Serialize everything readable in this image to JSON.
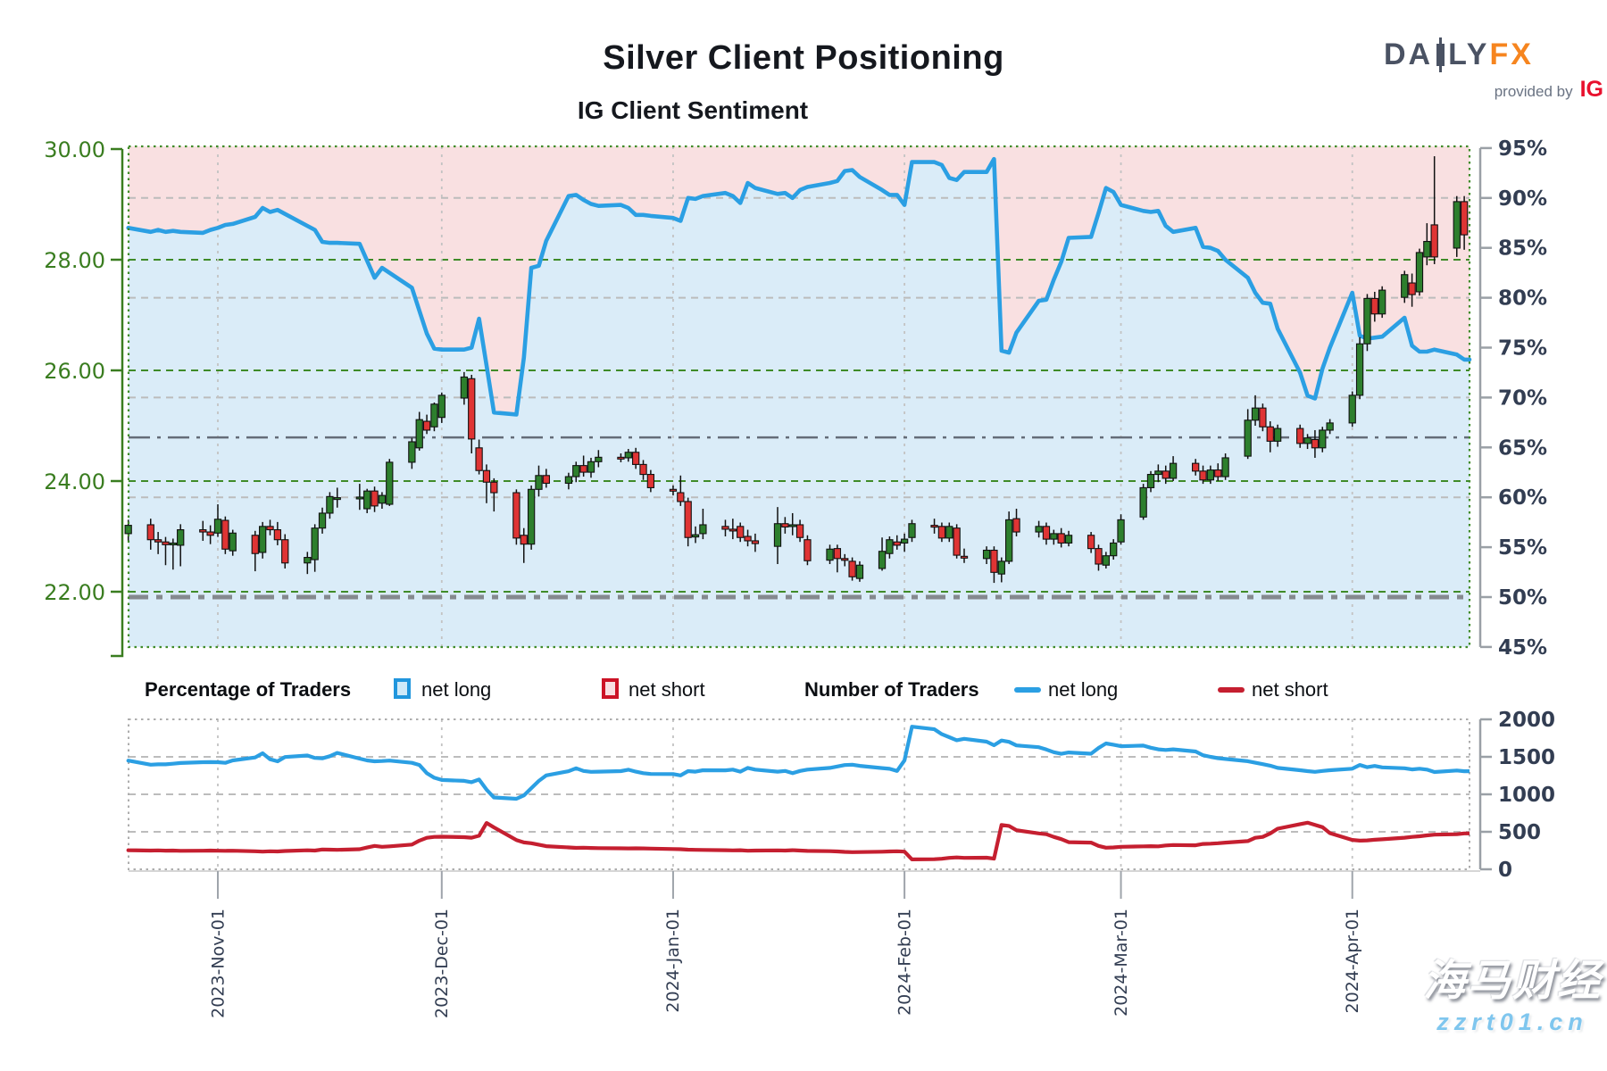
{
  "header": {
    "title": "Silver Client Positioning",
    "subtitle": "IG Client Sentiment"
  },
  "logo": {
    "part1": "DA",
    "part2": "LY",
    "part3": "FX",
    "provided_by": "provided by",
    "ig": "IG",
    "candlestick_color": "#4a5263",
    "fx_color": "#f6851f",
    "ig_color": "#e8102d"
  },
  "legend": {
    "percentage_label": "Percentage of Traders",
    "percentage_net_long": "net long",
    "percentage_net_short": "net short",
    "number_label": "Number of Traders",
    "number_net_long": "net long",
    "number_net_short": "net short"
  },
  "watermark": {
    "line1": "海马财经",
    "line2": "zzrt01.cn"
  },
  "colors": {
    "sentiment_line": "#2b9fe3",
    "area_below_line": "#daecf8",
    "area_above_line": "#f9e0e1",
    "candle_up": "#2d7f2d",
    "candle_down": "#df3434",
    "candle_outline": "#111111",
    "price_axis": "#3a7d20",
    "pct_axis": "#323d52",
    "grid_green": "#3f8b28",
    "grid_gray": "#bcbcbc",
    "month_grid": "#c3c3c3",
    "ref_thin": "#646c78",
    "ref_thick": "#85898f",
    "traders_long_line": "#2b9fe3",
    "traders_short_line": "#c51f30",
    "lower_border": "#adadad"
  },
  "chart_data": {
    "type": "candlestick+line",
    "title": "IG Client Sentiment",
    "price_axis": {
      "side": "left",
      "ticks": [
        30,
        28,
        26,
        24,
        22
      ],
      "labels": [
        "30.00",
        "28.00",
        "26.00",
        "24.00",
        "22.00"
      ],
      "min": 21.0,
      "max": 30.3
    },
    "sentiment_axis": {
      "side": "right",
      "unit": "%",
      "ticks": [
        95,
        90,
        85,
        80,
        75,
        70,
        65,
        60,
        55,
        50,
        45
      ]
    },
    "traders_axis": {
      "side": "right",
      "ticks": [
        2000,
        1500,
        1000,
        500,
        0
      ]
    },
    "reference_lines": {
      "thin_dashdot_pct": 66,
      "thick_dashdot_pct": 50
    },
    "x_ticks": [
      {
        "label": "2023-Nov-01",
        "date": "2023-11-01"
      },
      {
        "label": "2023-Dec-01",
        "date": "2023-12-01"
      },
      {
        "label": "2024-Jan-01",
        "date": "2024-01-01"
      },
      {
        "label": "2024-Feb-01",
        "date": "2024-02-01"
      },
      {
        "label": "2024-Mar-01",
        "date": "2024-03-01"
      },
      {
        "label": "2024-Apr-01",
        "date": "2024-04-01"
      }
    ],
    "dates": [
      "2023-10-20",
      "2023-10-23",
      "2023-10-24",
      "2023-10-25",
      "2023-10-26",
      "2023-10-27",
      "2023-10-30",
      "2023-10-31",
      "2023-11-01",
      "2023-11-02",
      "2023-11-03",
      "2023-11-06",
      "2023-11-07",
      "2023-11-08",
      "2023-11-09",
      "2023-11-10",
      "2023-11-13",
      "2023-11-14",
      "2023-11-15",
      "2023-11-16",
      "2023-11-17",
      "2023-11-20",
      "2023-11-21",
      "2023-11-22",
      "2023-11-23",
      "2023-11-24",
      "2023-11-27",
      "2023-11-28",
      "2023-11-29",
      "2023-11-30",
      "2023-12-01",
      "2023-12-04",
      "2023-12-05",
      "2023-12-06",
      "2023-12-07",
      "2023-12-08",
      "2023-12-11",
      "2023-12-12",
      "2023-12-13",
      "2023-12-14",
      "2023-12-15",
      "2023-12-18",
      "2023-12-19",
      "2023-12-20",
      "2023-12-21",
      "2023-12-22",
      "2023-12-25",
      "2023-12-26",
      "2023-12-27",
      "2023-12-28",
      "2023-12-29",
      "2024-01-01",
      "2024-01-02",
      "2024-01-03",
      "2024-01-04",
      "2024-01-05",
      "2024-01-08",
      "2024-01-09",
      "2024-01-10",
      "2024-01-11",
      "2024-01-12",
      "2024-01-15",
      "2024-01-16",
      "2024-01-17",
      "2024-01-18",
      "2024-01-19",
      "2024-01-22",
      "2024-01-23",
      "2024-01-24",
      "2024-01-25",
      "2024-01-26",
      "2024-01-29",
      "2024-01-30",
      "2024-01-31",
      "2024-02-01",
      "2024-02-02",
      "2024-02-05",
      "2024-02-06",
      "2024-02-07",
      "2024-02-08",
      "2024-02-09",
      "2024-02-12",
      "2024-02-13",
      "2024-02-14",
      "2024-02-15",
      "2024-02-16",
      "2024-02-19",
      "2024-02-20",
      "2024-02-21",
      "2024-02-22",
      "2024-02-23",
      "2024-02-26",
      "2024-02-27",
      "2024-02-28",
      "2024-02-29",
      "2024-03-01",
      "2024-03-04",
      "2024-03-05",
      "2024-03-06",
      "2024-03-07",
      "2024-03-08",
      "2024-03-11",
      "2024-03-12",
      "2024-03-13",
      "2024-03-14",
      "2024-03-15",
      "2024-03-18",
      "2024-03-19",
      "2024-03-20",
      "2024-03-21",
      "2024-03-22",
      "2024-03-25",
      "2024-03-26",
      "2024-03-27",
      "2024-03-28",
      "2024-03-29",
      "2024-04-01",
      "2024-04-02",
      "2024-04-03",
      "2024-04-04",
      "2024-04-05",
      "2024-04-08",
      "2024-04-09",
      "2024-04-10",
      "2024-04-11",
      "2024-04-12",
      "2024-04-15",
      "2024-04-16"
    ],
    "ohlc": [
      [
        23.05,
        23.3,
        22.92,
        23.2
      ],
      [
        23.21,
        23.32,
        22.76,
        22.94
      ],
      [
        22.94,
        23.08,
        22.68,
        22.9
      ],
      [
        22.9,
        22.99,
        22.48,
        22.85
      ],
      [
        22.86,
        22.96,
        22.4,
        22.88
      ],
      [
        22.84,
        23.22,
        22.46,
        23.12
      ],
      [
        23.12,
        23.28,
        22.92,
        23.08
      ],
      [
        23.08,
        23.2,
        22.86,
        23.02
      ],
      [
        23.06,
        23.58,
        22.99,
        23.31
      ],
      [
        23.29,
        23.36,
        22.68,
        22.77
      ],
      [
        22.74,
        23.12,
        22.65,
        23.06
      ],
      [
        23.02,
        23.1,
        22.37,
        22.69
      ],
      [
        22.71,
        23.26,
        22.6,
        23.18
      ],
      [
        23.18,
        23.3,
        23.02,
        23.12
      ],
      [
        23.12,
        23.26,
        22.84,
        22.94
      ],
      [
        22.94,
        23.04,
        22.42,
        22.52
      ],
      [
        22.52,
        22.72,
        22.32,
        22.62
      ],
      [
        22.58,
        23.22,
        22.36,
        23.15
      ],
      [
        23.15,
        23.52,
        23.05,
        23.42
      ],
      [
        23.42,
        23.8,
        23.32,
        23.72
      ],
      [
        23.7,
        23.88,
        23.52,
        23.7
      ],
      [
        23.7,
        23.95,
        23.48,
        23.71
      ],
      [
        23.5,
        23.86,
        23.42,
        23.82
      ],
      [
        23.82,
        23.9,
        23.44,
        23.55
      ],
      [
        23.6,
        23.8,
        23.5,
        23.74
      ],
      [
        23.58,
        24.4,
        23.55,
        24.34
      ],
      [
        24.34,
        24.78,
        24.22,
        24.71
      ],
      [
        24.6,
        25.25,
        24.55,
        25.11
      ],
      [
        25.08,
        25.2,
        24.85,
        24.92
      ],
      [
        24.98,
        25.42,
        24.9,
        25.39
      ],
      [
        25.15,
        25.6,
        25.05,
        25.55
      ],
      [
        25.5,
        25.97,
        25.38,
        25.88
      ],
      [
        25.85,
        25.92,
        24.5,
        24.76
      ],
      [
        24.6,
        24.75,
        24.12,
        24.19
      ],
      [
        24.19,
        24.3,
        23.6,
        23.98
      ],
      [
        23.98,
        24.05,
        23.45,
        23.79
      ],
      [
        23.79,
        23.85,
        22.85,
        22.97
      ],
      [
        23.02,
        23.15,
        22.52,
        22.86
      ],
      [
        22.86,
        23.92,
        22.76,
        23.85
      ],
      [
        23.85,
        24.28,
        23.72,
        24.1
      ],
      [
        24.1,
        24.22,
        23.88,
        23.96
      ],
      [
        23.96,
        24.15,
        23.85,
        24.08
      ],
      [
        24.08,
        24.35,
        23.98,
        24.28
      ],
      [
        24.28,
        24.46,
        24.08,
        24.16
      ],
      [
        24.16,
        24.42,
        24.06,
        24.35
      ],
      [
        24.35,
        24.56,
        24.25,
        24.43
      ],
      [
        24.43,
        24.5,
        24.34,
        24.42
      ],
      [
        24.42,
        24.58,
        24.35,
        24.52
      ],
      [
        24.52,
        24.6,
        24.22,
        24.3
      ],
      [
        24.3,
        24.38,
        24.02,
        24.12
      ],
      [
        24.12,
        24.2,
        23.8,
        23.88
      ],
      [
        23.85,
        23.92,
        23.74,
        23.82
      ],
      [
        23.79,
        24.1,
        23.55,
        23.63
      ],
      [
        23.63,
        23.7,
        22.82,
        22.98
      ],
      [
        22.99,
        23.18,
        22.88,
        23.03
      ],
      [
        23.05,
        23.5,
        22.95,
        23.21
      ],
      [
        23.18,
        23.3,
        23.0,
        23.13
      ],
      [
        23.13,
        23.32,
        22.95,
        23.1
      ],
      [
        23.18,
        23.25,
        22.9,
        22.98
      ],
      [
        23.0,
        23.12,
        22.82,
        22.92
      ],
      [
        22.92,
        23.05,
        22.72,
        22.87
      ],
      [
        22.82,
        23.53,
        22.5,
        23.23
      ],
      [
        23.23,
        23.35,
        23.05,
        23.17
      ],
      [
        23.2,
        23.42,
        23.02,
        23.21
      ],
      [
        23.21,
        23.3,
        22.9,
        22.98
      ],
      [
        22.94,
        23.02,
        22.48,
        22.56
      ],
      [
        22.57,
        22.85,
        22.5,
        22.77
      ],
      [
        22.78,
        22.85,
        22.35,
        22.6
      ],
      [
        22.6,
        22.68,
        22.46,
        22.57
      ],
      [
        22.55,
        22.62,
        22.2,
        22.27
      ],
      [
        22.24,
        22.55,
        22.18,
        22.48
      ],
      [
        22.42,
        22.98,
        22.38,
        22.73
      ],
      [
        22.69,
        23.0,
        22.6,
        22.94
      ],
      [
        22.9,
        23.02,
        22.76,
        22.84
      ],
      [
        22.88,
        23.05,
        22.72,
        22.95
      ],
      [
        22.98,
        23.3,
        22.9,
        23.23
      ],
      [
        23.2,
        23.32,
        23.05,
        23.18
      ],
      [
        23.18,
        23.25,
        22.9,
        22.97
      ],
      [
        22.97,
        23.25,
        22.9,
        23.18
      ],
      [
        23.15,
        23.22,
        22.6,
        22.66
      ],
      [
        22.64,
        22.78,
        22.52,
        22.62
      ],
      [
        22.6,
        22.82,
        22.5,
        22.75
      ],
      [
        22.75,
        22.82,
        22.16,
        22.35
      ],
      [
        22.32,
        22.62,
        22.17,
        22.55
      ],
      [
        22.55,
        23.45,
        22.5,
        23.3
      ],
      [
        23.32,
        23.5,
        23.0,
        23.08
      ],
      [
        23.08,
        23.28,
        22.98,
        23.18
      ],
      [
        23.18,
        23.25,
        22.85,
        22.95
      ],
      [
        22.95,
        23.12,
        22.85,
        23.05
      ],
      [
        23.05,
        23.15,
        22.8,
        22.88
      ],
      [
        22.88,
        23.1,
        22.82,
        23.02
      ],
      [
        23.02,
        23.08,
        22.7,
        22.78
      ],
      [
        22.78,
        22.85,
        22.38,
        22.5
      ],
      [
        22.48,
        22.72,
        22.42,
        22.65
      ],
      [
        22.65,
        22.95,
        22.58,
        22.88
      ],
      [
        22.9,
        23.4,
        22.85,
        23.3
      ],
      [
        23.35,
        23.95,
        23.3,
        23.88
      ],
      [
        23.88,
        24.18,
        23.8,
        24.12
      ],
      [
        24.12,
        24.3,
        23.98,
        24.18
      ],
      [
        24.18,
        24.28,
        23.95,
        24.05
      ],
      [
        24.05,
        24.45,
        24.0,
        24.32
      ],
      [
        24.32,
        24.4,
        24.1,
        24.18
      ],
      [
        24.18,
        24.28,
        23.95,
        24.02
      ],
      [
        24.02,
        24.28,
        23.95,
        24.2
      ],
      [
        24.2,
        24.32,
        24.0,
        24.08
      ],
      [
        24.08,
        24.5,
        24.02,
        24.42
      ],
      [
        24.45,
        25.3,
        24.4,
        25.1
      ],
      [
        25.1,
        25.55,
        25.0,
        25.32
      ],
      [
        25.32,
        25.4,
        24.9,
        24.98
      ],
      [
        24.98,
        25.08,
        24.52,
        24.72
      ],
      [
        24.72,
        25.02,
        24.62,
        24.95
      ],
      [
        24.95,
        25.02,
        24.6,
        24.68
      ],
      [
        24.68,
        24.85,
        24.58,
        24.78
      ],
      [
        24.75,
        24.92,
        24.42,
        24.6
      ],
      [
        24.6,
        24.98,
        24.52,
        24.92
      ],
      [
        24.92,
        25.12,
        24.85,
        25.05
      ],
      [
        25.05,
        25.62,
        24.98,
        25.55
      ],
      [
        25.55,
        26.6,
        25.48,
        26.48
      ],
      [
        26.48,
        27.38,
        26.35,
        27.3
      ],
      [
        27.3,
        27.42,
        26.88,
        27.02
      ],
      [
        27.02,
        27.52,
        26.95,
        27.45
      ],
      [
        27.32,
        27.8,
        27.22,
        27.73
      ],
      [
        27.58,
        27.75,
        27.15,
        27.37
      ],
      [
        27.42,
        28.2,
        27.35,
        28.13
      ],
      [
        28.05,
        28.66,
        27.9,
        28.33
      ],
      [
        28.63,
        29.87,
        27.92,
        28.05
      ],
      [
        28.21,
        29.15,
        28.05,
        29.05
      ],
      [
        29.05,
        29.15,
        28.18,
        28.45
      ]
    ],
    "net_long_pct": [
      87.0,
      86.6,
      86.8,
      86.6,
      86.7,
      86.6,
      86.5,
      86.8,
      87.0,
      87.3,
      87.4,
      88.1,
      89.0,
      88.6,
      88.8,
      88.4,
      87.2,
      86.8,
      85.6,
      85.5,
      85.5,
      85.4,
      83.7,
      82.0,
      83.0,
      82.5,
      81.0,
      78.7,
      76.4,
      74.9,
      74.8,
      74.8,
      75.0,
      77.9,
      73.2,
      68.5,
      68.3,
      74.0,
      83.0,
      83.2,
      85.7,
      90.2,
      90.3,
      89.8,
      89.4,
      89.2,
      89.3,
      89.0,
      88.3,
      88.3,
      88.2,
      88.0,
      87.7,
      90.0,
      89.9,
      90.2,
      90.5,
      90.2,
      89.5,
      91.5,
      91.0,
      90.4,
      90.5,
      90.0,
      90.8,
      91.1,
      91.5,
      91.7,
      92.7,
      92.8,
      92.1,
      90.8,
      90.3,
      90.3,
      89.3,
      93.6,
      93.6,
      93.3,
      92.0,
      91.8,
      92.6,
      92.6,
      93.9,
      74.7,
      74.5,
      76.5,
      79.7,
      79.8,
      81.8,
      83.6,
      86.0,
      86.1,
      88.5,
      91.0,
      90.6,
      89.3,
      88.7,
      88.6,
      88.7,
      87.2,
      86.6,
      87.0,
      85.1,
      85.0,
      84.7,
      83.8,
      82.0,
      80.5,
      79.5,
      79.4,
      76.9,
      72.5,
      70.2,
      69.9,
      72.9,
      75.0,
      80.5,
      76.2,
      75.9,
      76.0,
      76.1,
      78.0,
      75.2,
      74.6,
      74.6,
      74.8,
      74.3,
      73.8
    ],
    "net_long_count": [
      1450,
      1395,
      1400,
      1400,
      1408,
      1418,
      1428,
      1430,
      1428,
      1420,
      1452,
      1492,
      1548,
      1468,
      1440,
      1498,
      1518,
      1486,
      1480,
      1508,
      1552,
      1476,
      1452,
      1440,
      1444,
      1450,
      1420,
      1392,
      1282,
      1222,
      1192,
      1180,
      1162,
      1198,
      1062,
      958,
      940,
      986,
      1082,
      1178,
      1252,
      1308,
      1348,
      1312,
      1300,
      1302,
      1310,
      1328,
      1302,
      1282,
      1272,
      1270,
      1252,
      1310,
      1302,
      1322,
      1320,
      1330,
      1302,
      1352,
      1330,
      1302,
      1312,
      1282,
      1312,
      1330,
      1352,
      1372,
      1390,
      1395,
      1380,
      1350,
      1340,
      1312,
      1452,
      1902,
      1868,
      1802,
      1762,
      1722,
      1740,
      1702,
      1655,
      1718,
      1700,
      1652,
      1628,
      1598,
      1562,
      1540,
      1558,
      1542,
      1618,
      1678,
      1662,
      1642,
      1650,
      1622,
      1600,
      1592,
      1600,
      1572,
      1522,
      1500,
      1482,
      1472,
      1442,
      1422,
      1402,
      1382,
      1352,
      1322,
      1310,
      1300,
      1312,
      1322,
      1342,
      1392,
      1362,
      1378,
      1360,
      1348,
      1332,
      1342,
      1330,
      1298,
      1318,
      1308
    ],
    "net_short_count": [
      255,
      250,
      252,
      249,
      250,
      247,
      248,
      250,
      248,
      246,
      248,
      241,
      236,
      240,
      238,
      244,
      254,
      250,
      264,
      262,
      260,
      268,
      290,
      312,
      300,
      306,
      330,
      382,
      420,
      432,
      434,
      428,
      422,
      448,
      618,
      558,
      390,
      358,
      348,
      328,
      308,
      292,
      286,
      288,
      284,
      282,
      280,
      278,
      280,
      278,
      276,
      270,
      268,
      262,
      260,
      258,
      255,
      252,
      255,
      248,
      250,
      252,
      250,
      255,
      250,
      245,
      242,
      238,
      232,
      228,
      230,
      234,
      238,
      240,
      236,
      132,
      135,
      140,
      152,
      158,
      152,
      155,
      142,
      592,
      578,
      522,
      478,
      468,
      432,
      402,
      362,
      356,
      312,
      288,
      292,
      300,
      306,
      308,
      306,
      318,
      324,
      320,
      338,
      342,
      348,
      356,
      376,
      420,
      432,
      478,
      542,
      602,
      622,
      592,
      562,
      482,
      392,
      382,
      386,
      394,
      400,
      422,
      432,
      440,
      452,
      462,
      468,
      478
    ]
  }
}
